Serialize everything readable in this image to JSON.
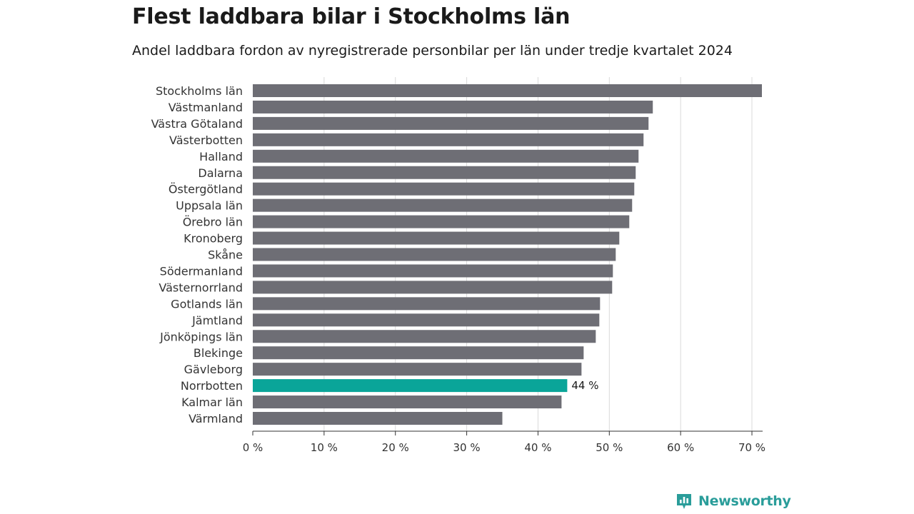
{
  "colors": {
    "bar": "#6e6e75",
    "highlight": "#0aa599",
    "grid": "#d9d9d9",
    "axis": "#333333",
    "brand": "#2a9d9a"
  },
  "brand": {
    "name": "Newsworthy",
    "icon": "newsworthy-logo-icon"
  },
  "chart_data": {
    "type": "bar",
    "orientation": "horizontal",
    "title": "Flest laddbara bilar i Stockholms län",
    "subtitle": "Andel laddbara fordon av nyregistrerade personbilar per län under tredje kvartalet 2024",
    "xlabel": "",
    "ylabel": "",
    "xlim": [
      0,
      71.5
    ],
    "grid": "vertical",
    "ticks": [
      {
        "value": 0,
        "label": "0 %"
      },
      {
        "value": 10,
        "label": "10 %"
      },
      {
        "value": 20,
        "label": "20 %"
      },
      {
        "value": 30,
        "label": "30 %"
      },
      {
        "value": 40,
        "label": "40 %"
      },
      {
        "value": 50,
        "label": "50 %"
      },
      {
        "value": 60,
        "label": "60 %"
      },
      {
        "value": 70,
        "label": "70 %"
      }
    ],
    "categories": [
      "Stockholms län",
      "Västmanland",
      "Västra Götaland",
      "Västerbotten",
      "Halland",
      "Dalarna",
      "Östergötland",
      "Uppsala län",
      "Örebro län",
      "Kronoberg",
      "Skåne",
      "Södermanland",
      "Västernorrland",
      "Gotlands län",
      "Jämtland",
      "Jönköpings län",
      "Blekinge",
      "Gävleborg",
      "Norrbotten",
      "Kalmar län",
      "Värmland"
    ],
    "values": [
      71.4,
      56.1,
      55.5,
      54.8,
      54.1,
      53.7,
      53.5,
      53.2,
      52.8,
      51.4,
      50.9,
      50.5,
      50.4,
      48.7,
      48.6,
      48.1,
      46.4,
      46.1,
      44.1,
      43.3,
      35.0
    ],
    "highlight": {
      "category": "Norrbotten",
      "label": "44 %"
    }
  }
}
